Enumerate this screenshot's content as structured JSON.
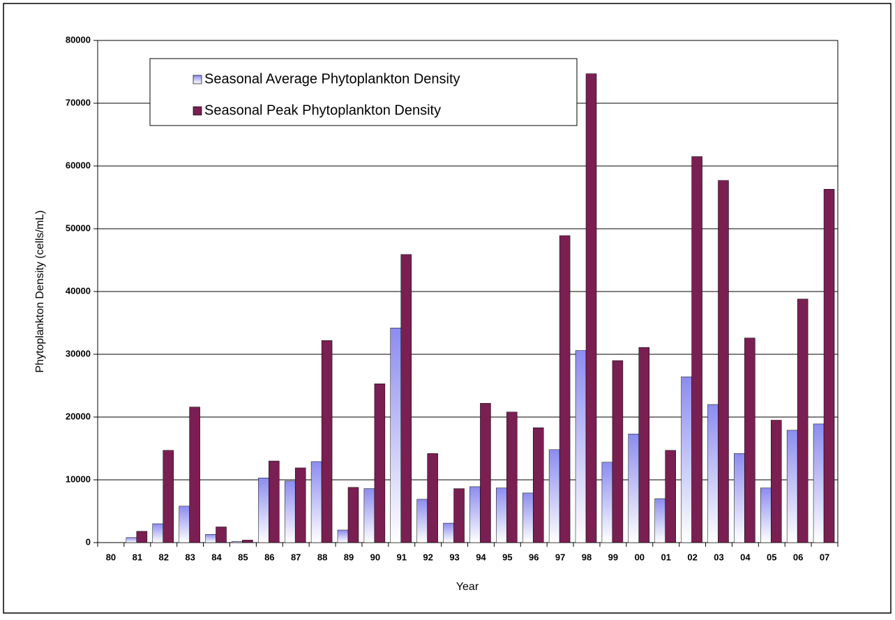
{
  "chart_data": {
    "type": "bar",
    "x_label": "Year",
    "y_label": "Phytoplankton Density (cells/mL)",
    "categories": [
      "80",
      "81",
      "82",
      "83",
      "84",
      "85",
      "86",
      "87",
      "88",
      "89",
      "90",
      "91",
      "92",
      "93",
      "94",
      "95",
      "96",
      "97",
      "98",
      "99",
      "00",
      "01",
      "02",
      "03",
      "04",
      "05",
      "06",
      "07"
    ],
    "series": [
      {
        "name": "Seasonal Average Phytoplankton Density",
        "color": "#8c8cf0",
        "values": [
          null,
          800,
          3000,
          5800,
          1300,
          200,
          10300,
          9800,
          12900,
          2000,
          8600,
          34200,
          6900,
          3100,
          8900,
          8700,
          7900,
          14800,
          30600,
          12800,
          17300,
          7000,
          26400,
          22000,
          14200,
          8700,
          17900,
          18900
        ]
      },
      {
        "name": "Seasonal Peak Phytoplankton Density",
        "color": "#7a1f52",
        "values": [
          null,
          1800,
          14700,
          21600,
          2500,
          400,
          13000,
          11900,
          32200,
          8800,
          25300,
          45900,
          14200,
          8600,
          22200,
          20800,
          18300,
          48900,
          74700,
          29000,
          31100,
          14700,
          61500,
          57700,
          32600,
          19500,
          38800,
          56300
        ]
      }
    ],
    "ylim": [
      0,
      80000
    ],
    "yticks": [
      0,
      10000,
      20000,
      30000,
      40000,
      50000,
      60000,
      70000,
      80000
    ],
    "grid": true,
    "legend": "top-left"
  }
}
